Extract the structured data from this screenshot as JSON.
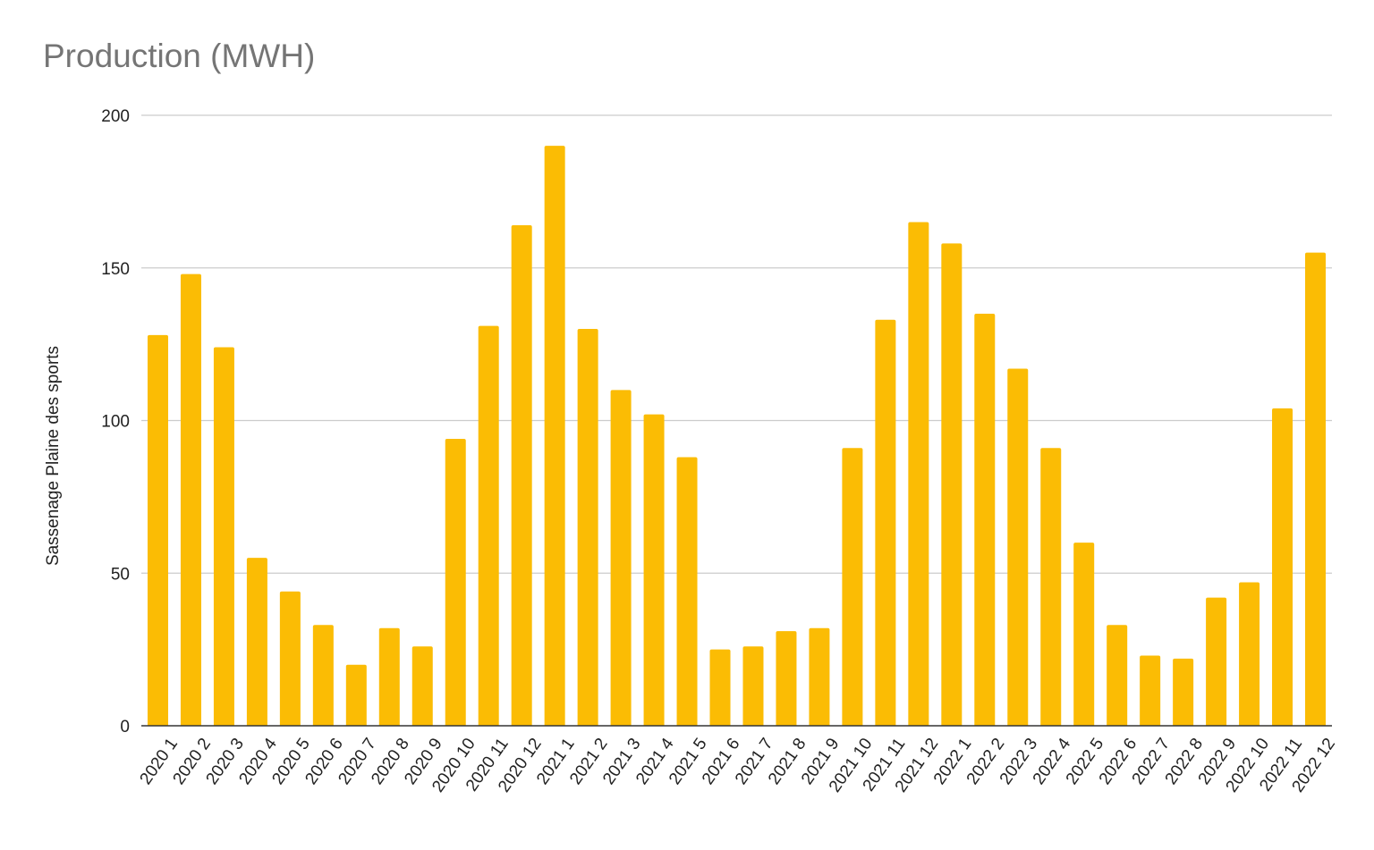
{
  "chart_data": {
    "type": "bar",
    "title": "Production (MWH)",
    "xlabel": "",
    "ylabel": "Sassenage Plaine des sports",
    "ylim": [
      0,
      200
    ],
    "yticks": [
      0,
      50,
      100,
      150,
      200
    ],
    "grid": true,
    "bar_color": "#FBBC04",
    "categories": [
      "2020 1",
      "2020 2",
      "2020 3",
      "2020 4",
      "2020 5",
      "2020 6",
      "2020 7",
      "2020 8",
      "2020 9",
      "2020 10",
      "2020 11",
      "2020 12",
      "2021 1",
      "2021 2",
      "2021 3",
      "2021 4",
      "2021 5",
      "2021 6",
      "2021 7",
      "2021 8",
      "2021 9",
      "2021 10",
      "2021 11",
      "2021 12",
      "2022 1",
      "2022 2",
      "2022 3",
      "2022 4",
      "2022 5",
      "2022 6",
      "2022 7",
      "2022 8",
      "2022 9",
      "2022 10",
      "2022 11",
      "2022 12"
    ],
    "values": [
      128,
      148,
      124,
      55,
      44,
      33,
      20,
      32,
      26,
      94,
      131,
      164,
      190,
      130,
      110,
      102,
      88,
      25,
      26,
      31,
      32,
      91,
      133,
      165,
      158,
      135,
      117,
      91,
      60,
      33,
      23,
      22,
      42,
      47,
      104,
      155
    ]
  }
}
